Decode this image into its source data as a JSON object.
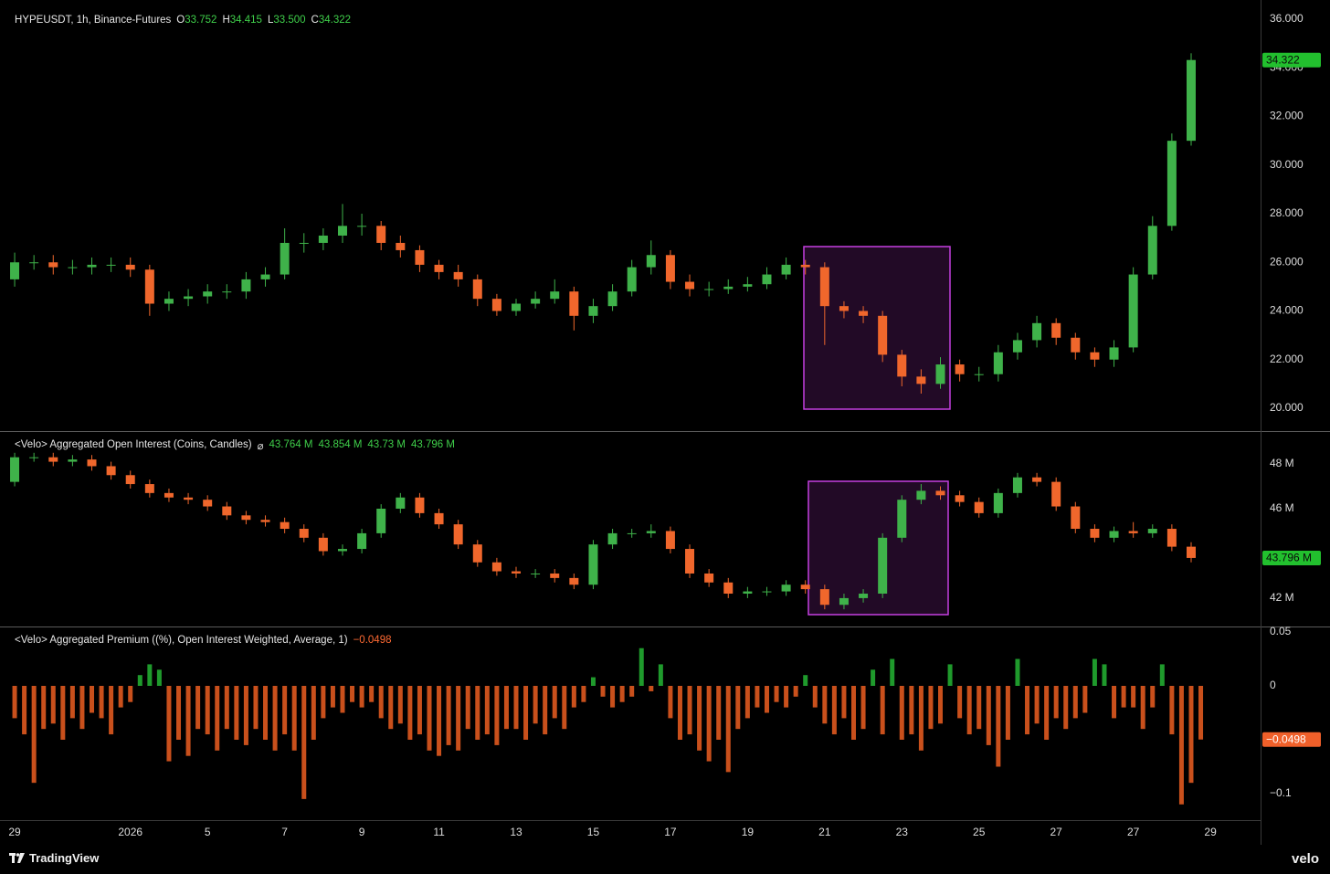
{
  "chart_data": [
    {
      "type": "candlestick",
      "header": {
        "title": "HYPEUSDT, 1h, Binance-Futures",
        "ohlc": [
          {
            "key": "O",
            "value": "33.752"
          },
          {
            "key": "H",
            "value": "34.415"
          },
          {
            "key": "L",
            "value": "33.500"
          },
          {
            "key": "C",
            "value": "34.322"
          }
        ]
      },
      "colors": {
        "up": "#3fb24a",
        "down": "#f0672c"
      },
      "xlim": [
        -0.38,
        32.3
      ],
      "ylim": [
        19.06,
        36.49
      ],
      "yticks": [
        {
          "value": 36,
          "label": "36.000"
        },
        {
          "value": 34,
          "label": "34.000"
        },
        {
          "value": 32,
          "label": "32.000"
        },
        {
          "value": 30,
          "label": "30.000"
        },
        {
          "value": 28,
          "label": "28.000"
        },
        {
          "value": 26,
          "label": "26.000"
        },
        {
          "value": 24,
          "label": "24.000"
        },
        {
          "value": 22,
          "label": "22.000"
        },
        {
          "value": 20,
          "label": "20.000"
        }
      ],
      "last_label": "34.322",
      "x": [
        0,
        0.5,
        1,
        1.5,
        2,
        2.5,
        3,
        3.5,
        4,
        4.5,
        5,
        5.5,
        6,
        6.5,
        7,
        7.5,
        8,
        8.5,
        9,
        9.5,
        10,
        10.5,
        11,
        11.5,
        12,
        12.5,
        13,
        13.5,
        14,
        14.5,
        15,
        15.5,
        16,
        16.5,
        17,
        17.5,
        18,
        18.5,
        19,
        19.5,
        20,
        20.5,
        21,
        21.5,
        22,
        22.5,
        23,
        23.5,
        24,
        24.5,
        25,
        25.5,
        26,
        26.5,
        27,
        27.5,
        28,
        28.5,
        29,
        29.5,
        30,
        30.5
      ],
      "open": [
        25.3,
        26.0,
        26.0,
        25.8,
        25.8,
        25.9,
        25.9,
        25.7,
        24.3,
        24.5,
        24.6,
        24.8,
        24.8,
        25.3,
        25.5,
        26.8,
        26.8,
        27.1,
        27.5,
        27.5,
        26.8,
        26.5,
        25.9,
        25.6,
        25.3,
        24.5,
        24.0,
        24.3,
        24.5,
        24.8,
        23.8,
        24.2,
        24.8,
        25.8,
        26.3,
        25.2,
        24.9,
        24.9,
        25.0,
        25.1,
        25.5,
        25.9,
        25.8,
        24.2,
        24.0,
        23.8,
        22.2,
        21.3,
        21.0,
        21.8,
        21.4,
        21.4,
        22.3,
        22.8,
        23.5,
        22.9,
        22.3,
        22.0,
        22.5,
        25.5,
        27.5,
        31.0
      ],
      "high": [
        26.4,
        26.3,
        26.3,
        26.1,
        26.2,
        26.2,
        26.2,
        25.9,
        24.8,
        24.9,
        25.1,
        25.1,
        25.6,
        25.8,
        27.4,
        27.2,
        27.4,
        28.4,
        28.0,
        27.7,
        27.1,
        26.7,
        26.1,
        25.9,
        25.5,
        24.7,
        24.5,
        24.8,
        25.3,
        25.0,
        24.5,
        25.1,
        26.1,
        26.9,
        26.5,
        25.5,
        25.2,
        25.3,
        25.4,
        25.8,
        26.2,
        26.1,
        26.0,
        24.4,
        24.2,
        24.0,
        22.4,
        21.6,
        22.1,
        22.0,
        21.7,
        22.6,
        23.1,
        23.8,
        23.7,
        23.1,
        22.5,
        22.8,
        25.8,
        27.9,
        31.3,
        34.6
      ],
      "low": [
        25.0,
        25.7,
        25.5,
        25.5,
        25.5,
        25.6,
        25.4,
        23.8,
        24.0,
        24.2,
        24.3,
        24.5,
        24.5,
        25.0,
        25.3,
        26.4,
        26.5,
        26.8,
        27.1,
        26.5,
        26.2,
        25.6,
        25.3,
        25.0,
        24.2,
        23.8,
        23.8,
        24.1,
        24.3,
        23.2,
        23.5,
        24.0,
        24.6,
        25.5,
        24.9,
        24.6,
        24.6,
        24.7,
        24.8,
        24.9,
        25.3,
        25.5,
        22.6,
        23.7,
        23.5,
        21.9,
        20.9,
        20.6,
        20.8,
        21.1,
        21.1,
        21.1,
        22.0,
        22.5,
        22.6,
        22.0,
        21.7,
        21.7,
        22.3,
        25.3,
        27.3,
        30.8
      ],
      "close": [
        26.0,
        26.0,
        25.8,
        25.8,
        25.9,
        25.9,
        25.7,
        24.3,
        24.5,
        24.6,
        24.8,
        24.8,
        25.3,
        25.5,
        26.8,
        26.8,
        27.1,
        27.5,
        27.5,
        26.8,
        26.5,
        25.9,
        25.6,
        25.3,
        24.5,
        24.0,
        24.3,
        24.5,
        24.8,
        23.8,
        24.2,
        24.8,
        25.8,
        26.3,
        25.2,
        24.9,
        24.9,
        25.0,
        25.1,
        25.5,
        25.9,
        25.8,
        24.2,
        24.0,
        23.8,
        22.2,
        21.3,
        21.0,
        21.8,
        21.4,
        21.4,
        22.3,
        22.8,
        23.5,
        22.9,
        22.3,
        22.0,
        22.5,
        25.5,
        27.5,
        31.0,
        34.322
      ]
    },
    {
      "type": "candlestick",
      "header": {
        "title": "<Velo> Aggregated Open Interest (Coins, Candles)",
        "symbol": "⌀",
        "ohlc": [
          {
            "value": "43.764 M"
          },
          {
            "value": "43.854 M"
          },
          {
            "value": "43.73 M"
          },
          {
            "value": "43.796 M"
          }
        ]
      },
      "colors": {
        "up": "#3fb24a",
        "down": "#f0672c"
      },
      "xlim": [
        -0.38,
        32.3
      ],
      "ylim": [
        40.73,
        49.39
      ],
      "yticks": [
        {
          "value": 48,
          "label": "48 M"
        },
        {
          "value": 46,
          "label": "46 M"
        },
        {
          "value": 42,
          "label": "42 M"
        }
      ],
      "last_label": "43.796 M",
      "x": [
        0,
        0.5,
        1,
        1.5,
        2,
        2.5,
        3,
        3.5,
        4,
        4.5,
        5,
        5.5,
        6,
        6.5,
        7,
        7.5,
        8,
        8.5,
        9,
        9.5,
        10,
        10.5,
        11,
        11.5,
        12,
        12.5,
        13,
        13.5,
        14,
        14.5,
        15,
        15.5,
        16,
        16.5,
        17,
        17.5,
        18,
        18.5,
        19,
        19.5,
        20,
        20.5,
        21,
        21.5,
        22,
        22.5,
        23,
        23.5,
        24,
        24.5,
        25,
        25.5,
        26,
        26.5,
        27,
        27.5,
        28,
        28.5,
        29,
        29.5,
        30,
        30.5
      ],
      "open": [
        47.2,
        48.3,
        48.3,
        48.1,
        48.2,
        47.9,
        47.5,
        47.1,
        46.7,
        46.5,
        46.4,
        46.1,
        45.7,
        45.5,
        45.4,
        45.1,
        44.7,
        44.1,
        44.2,
        44.9,
        46.0,
        46.5,
        45.8,
        45.3,
        44.4,
        43.6,
        43.2,
        43.1,
        43.1,
        42.9,
        42.6,
        44.4,
        44.9,
        44.9,
        45.0,
        44.2,
        43.1,
        42.7,
        42.2,
        42.3,
        42.3,
        42.6,
        42.4,
        41.7,
        42.0,
        42.2,
        44.7,
        46.4,
        46.8,
        46.6,
        46.3,
        45.8,
        46.7,
        47.4,
        47.2,
        46.1,
        45.1,
        44.7,
        45.0,
        44.9,
        45.1,
        44.3
      ],
      "high": [
        48.5,
        48.5,
        48.5,
        48.4,
        48.4,
        48.1,
        47.7,
        47.3,
        46.9,
        46.7,
        46.6,
        46.3,
        45.9,
        45.7,
        45.6,
        45.3,
        44.9,
        44.4,
        45.1,
        46.2,
        46.7,
        46.7,
        46.0,
        45.5,
        44.6,
        43.8,
        43.4,
        43.3,
        43.3,
        43.1,
        44.6,
        45.1,
        45.1,
        45.3,
        45.2,
        44.4,
        43.3,
        42.9,
        42.5,
        42.5,
        42.8,
        42.8,
        42.6,
        42.2,
        42.4,
        44.9,
        46.6,
        47.1,
        47.0,
        46.8,
        46.5,
        46.9,
        47.6,
        47.6,
        47.4,
        46.3,
        45.3,
        45.2,
        45.4,
        45.3,
        45.3,
        44.5
      ],
      "low": [
        47.0,
        48.1,
        47.9,
        47.9,
        47.7,
        47.3,
        46.9,
        46.5,
        46.3,
        46.2,
        45.9,
        45.5,
        45.3,
        45.2,
        44.9,
        44.5,
        43.9,
        43.9,
        44.0,
        44.7,
        45.8,
        45.6,
        45.1,
        44.2,
        43.4,
        43.0,
        42.9,
        42.9,
        42.7,
        42.4,
        42.4,
        44.2,
        44.7,
        44.7,
        44.0,
        42.9,
        42.5,
        42.0,
        42.0,
        42.1,
        42.1,
        42.2,
        41.5,
        41.5,
        41.8,
        42.0,
        44.5,
        46.2,
        46.4,
        46.1,
        45.6,
        45.6,
        46.5,
        47.0,
        45.9,
        44.9,
        44.5,
        44.5,
        44.7,
        44.7,
        44.1,
        43.6
      ],
      "close": [
        48.3,
        48.3,
        48.1,
        48.2,
        47.9,
        47.5,
        47.1,
        46.7,
        46.5,
        46.4,
        46.1,
        45.7,
        45.5,
        45.4,
        45.1,
        44.7,
        44.1,
        44.2,
        44.9,
        46.0,
        46.5,
        45.8,
        45.3,
        44.4,
        43.6,
        43.2,
        43.1,
        43.1,
        42.9,
        42.6,
        44.4,
        44.9,
        44.9,
        45.0,
        44.2,
        43.1,
        42.7,
        42.2,
        42.3,
        42.3,
        42.6,
        42.4,
        41.7,
        42.0,
        42.2,
        44.7,
        46.4,
        46.8,
        46.6,
        46.3,
        45.8,
        46.7,
        47.4,
        47.2,
        46.1,
        45.1,
        44.7,
        45.0,
        44.9,
        45.1,
        44.3,
        43.796
      ]
    },
    {
      "type": "bar",
      "header": {
        "title": "<Velo> Aggregated Premium ((%), Open Interest Weighted, Average, 1)",
        "value": "−0.0498"
      },
      "colors": {
        "up": "#1f9a2c",
        "down": "#c9501c"
      },
      "xlim": [
        -0.38,
        32.3
      ],
      "ylim": [
        -0.1246,
        0.0534
      ],
      "yticks": [
        0.05,
        0,
        {
          "value": -0.1,
          "label": "−0.1"
        }
      ],
      "xticks": [
        {
          "value": 0,
          "label": "29"
        },
        {
          "value": 3,
          "label": "2026"
        },
        5,
        7,
        9,
        11,
        13,
        15,
        17,
        19,
        21,
        23,
        25,
        27,
        {
          "value": 29,
          "label": "27"
        },
        {
          "value": 31,
          "label": "29"
        }
      ],
      "last_label": "−0.0498",
      "x": [
        0,
        0.25,
        0.5,
        0.75,
        1,
        1.25,
        1.5,
        1.75,
        2,
        2.25,
        2.5,
        2.75,
        3,
        3.25,
        3.5,
        3.75,
        4,
        4.25,
        4.5,
        4.75,
        5,
        5.25,
        5.5,
        5.75,
        6,
        6.25,
        6.5,
        6.75,
        7,
        7.25,
        7.5,
        7.75,
        8,
        8.25,
        8.5,
        8.75,
        9,
        9.25,
        9.5,
        9.75,
        10,
        10.25,
        10.5,
        10.75,
        11,
        11.25,
        11.5,
        11.75,
        12,
        12.25,
        12.5,
        12.75,
        13,
        13.25,
        13.5,
        13.75,
        14,
        14.25,
        14.5,
        14.75,
        15,
        15.25,
        15.5,
        15.75,
        16,
        16.25,
        16.5,
        16.75,
        17,
        17.25,
        17.5,
        17.75,
        18,
        18.25,
        18.5,
        18.75,
        19,
        19.25,
        19.5,
        19.75,
        20,
        20.25,
        20.5,
        20.75,
        21,
        21.25,
        21.5,
        21.75,
        22,
        22.25,
        22.5,
        22.75,
        23,
        23.25,
        23.5,
        23.75,
        24,
        24.25,
        24.5,
        24.75,
        25,
        25.25,
        25.5,
        25.75,
        26,
        26.25,
        26.5,
        26.75,
        27,
        27.25,
        27.5,
        27.75,
        28,
        28.25,
        28.5,
        28.75,
        29,
        29.25,
        29.5,
        29.75,
        30,
        30.25,
        30.5,
        30.75
      ],
      "values": [
        -0.03,
        -0.045,
        -0.09,
        -0.04,
        -0.035,
        -0.05,
        -0.03,
        -0.04,
        -0.025,
        -0.03,
        -0.045,
        -0.02,
        -0.015,
        0.01,
        0.02,
        0.015,
        -0.07,
        -0.05,
        -0.065,
        -0.04,
        -0.045,
        -0.06,
        -0.04,
        -0.05,
        -0.055,
        -0.04,
        -0.05,
        -0.06,
        -0.045,
        -0.06,
        -0.105,
        -0.05,
        -0.03,
        -0.02,
        -0.025,
        -0.015,
        -0.02,
        -0.015,
        -0.03,
        -0.04,
        -0.035,
        -0.05,
        -0.045,
        -0.06,
        -0.065,
        -0.055,
        -0.06,
        -0.04,
        -0.05,
        -0.045,
        -0.055,
        -0.04,
        -0.04,
        -0.05,
        -0.035,
        -0.045,
        -0.03,
        -0.04,
        -0.02,
        -0.015,
        0.008,
        -0.01,
        -0.02,
        -0.015,
        -0.01,
        0.035,
        -0.005,
        0.02,
        -0.03,
        -0.05,
        -0.045,
        -0.06,
        -0.07,
        -0.05,
        -0.08,
        -0.04,
        -0.03,
        -0.02,
        -0.025,
        -0.015,
        -0.02,
        -0.01,
        0.01,
        -0.02,
        -0.035,
        -0.045,
        -0.03,
        -0.05,
        -0.04,
        0.015,
        -0.045,
        0.025,
        -0.05,
        -0.045,
        -0.06,
        -0.04,
        -0.035,
        0.02,
        -0.03,
        -0.045,
        -0.04,
        -0.055,
        -0.075,
        -0.05,
        0.025,
        -0.045,
        -0.035,
        -0.05,
        -0.03,
        -0.04,
        -0.03,
        -0.025,
        0.025,
        0.02,
        -0.03,
        -0.02,
        -0.02,
        -0.04,
        -0.02,
        0.02,
        -0.045,
        -0.11,
        -0.09,
        -0.0498
      ]
    }
  ],
  "footer": {
    "left": "TradingView",
    "right": "velo"
  }
}
